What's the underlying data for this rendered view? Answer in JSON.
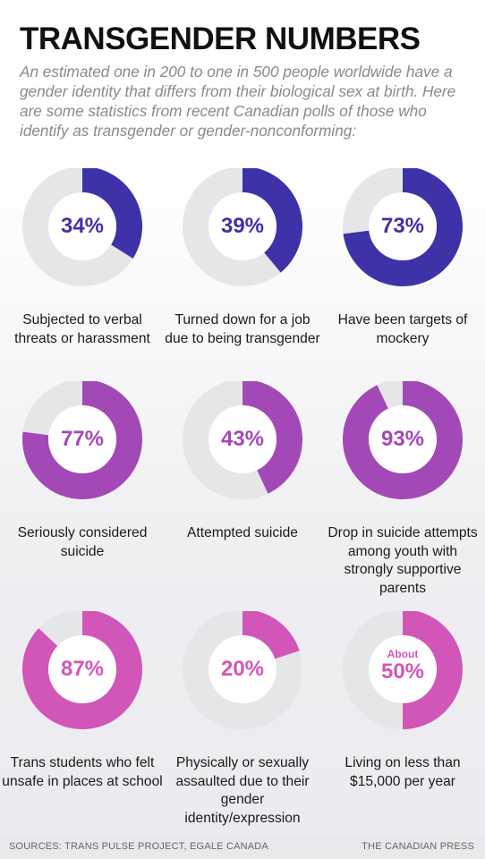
{
  "header": {
    "title": "TRANSGENDER NUMBERS",
    "subtitle": "An estimated one in 200 to one in 500 people worldwide have a gender identity that differs from their biological sex at birth. Here are some statistics from recent Canadian polls of those who identify as transgender or gender-nonconforming:"
  },
  "colors": {
    "track": "#e6e6e8",
    "row1": "#3d32a8",
    "row2": "#a349b7",
    "row3": "#d256b8"
  },
  "chart_data": {
    "type": "pie",
    "items": [
      {
        "value": 34,
        "pct_label": "34%",
        "prefix": "",
        "label": "Subjected to verbal threats or harassment",
        "color": "#3d32a8"
      },
      {
        "value": 39,
        "pct_label": "39%",
        "prefix": "",
        "label": "Turned down for a job due to being transgender",
        "color": "#3d32a8"
      },
      {
        "value": 73,
        "pct_label": "73%",
        "prefix": "",
        "label": "Have been targets of mockery",
        "color": "#3d32a8"
      },
      {
        "value": 77,
        "pct_label": "77%",
        "prefix": "",
        "label": "Seriously considered suicide",
        "color": "#a349b7"
      },
      {
        "value": 43,
        "pct_label": "43%",
        "prefix": "",
        "label": "Attempted suicide",
        "color": "#a349b7"
      },
      {
        "value": 93,
        "pct_label": "93%",
        "prefix": "",
        "label": "Drop in suicide attempts among youth with strongly supportive parents",
        "color": "#a349b7"
      },
      {
        "value": 87,
        "pct_label": "87%",
        "prefix": "",
        "label": "Trans students who felt unsafe in places at school",
        "color": "#d256b8"
      },
      {
        "value": 20,
        "pct_label": "20%",
        "prefix": "",
        "label": "Physically or sexually assaulted due to their gender identity/expression",
        "color": "#d256b8"
      },
      {
        "value": 50,
        "pct_label": "50%",
        "prefix": "About",
        "label": "Living on less than $15,000 per year",
        "color": "#d256b8"
      }
    ]
  },
  "footer": {
    "sources": "SOURCES: TRANS PULSE PROJECT, EGALE CANADA",
    "credit": "THE CANADIAN PRESS"
  }
}
